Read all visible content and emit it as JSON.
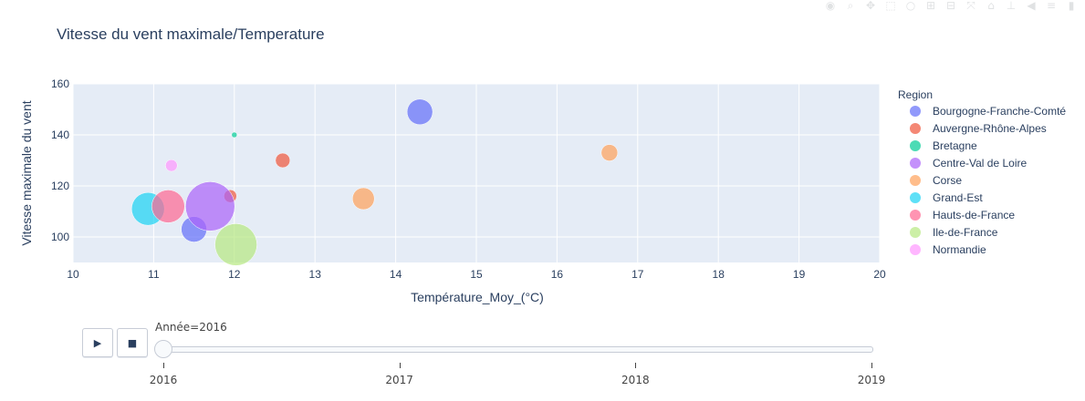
{
  "chart_data": {
    "type": "scatter",
    "title": "Vitesse du vent maximale/Temperature",
    "xlabel": "Température_Moy_(°C)",
    "ylabel": "Vitesse maximale du vent",
    "xlim": [
      10,
      20
    ],
    "ylim": [
      90,
      160
    ],
    "xticks": [
      10,
      11,
      12,
      13,
      14,
      15,
      16,
      17,
      18,
      19,
      20
    ],
    "yticks": [
      100,
      120,
      140,
      160
    ],
    "grid": true,
    "legend_title": "Region",
    "legend_position": "right",
    "series": [
      {
        "name": "Bourgogne-Franche-Comté",
        "color": "#636efa",
        "points": [
          {
            "x": 14.3,
            "y": 149,
            "size": 28
          },
          {
            "x": 11.5,
            "y": 103,
            "size": 28
          }
        ]
      },
      {
        "name": "Auvergne-Rhône-Alpes",
        "color": "#ef553b",
        "points": [
          {
            "x": 12.6,
            "y": 130,
            "size": 16
          },
          {
            "x": 11.95,
            "y": 116,
            "size": 14
          }
        ]
      },
      {
        "name": "Bretagne",
        "color": "#00cc96",
        "points": [
          {
            "x": 12.0,
            "y": 140,
            "size": 6
          }
        ]
      },
      {
        "name": "Centre-Val de Loire",
        "color": "#ab63fa",
        "points": [
          {
            "x": 11.7,
            "y": 112,
            "size": 54
          }
        ]
      },
      {
        "name": "Corse",
        "color": "#ffa15a",
        "points": [
          {
            "x": 16.65,
            "y": 133,
            "size": 18
          },
          {
            "x": 13.6,
            "y": 115,
            "size": 24
          }
        ]
      },
      {
        "name": "Grand-Est",
        "color": "#19d3f3",
        "points": [
          {
            "x": 10.93,
            "y": 111,
            "size": 36
          }
        ]
      },
      {
        "name": "Hauts-de-France",
        "color": "#ff6692",
        "points": [
          {
            "x": 11.18,
            "y": 112,
            "size": 36
          }
        ]
      },
      {
        "name": "Ile-de-France",
        "color": "#b6e880",
        "points": [
          {
            "x": 12.02,
            "y": 97,
            "size": 46
          }
        ]
      },
      {
        "name": "Normandie",
        "color": "#ff97ff",
        "points": [
          {
            "x": 11.22,
            "y": 128,
            "size": 13
          }
        ]
      }
    ]
  },
  "slider": {
    "current_label": "Année=2016",
    "steps": [
      "2016",
      "2017",
      "2018",
      "2019"
    ],
    "current_value_fraction": 0
  },
  "player": {
    "play_icon": "▶",
    "stop_icon": "■"
  },
  "modebar": [
    "camera-icon",
    "zoom-icon",
    "pan-icon",
    "box-select-icon",
    "lasso-icon",
    "zoom-in-icon",
    "zoom-out-icon",
    "autoscale-icon",
    "reset-icon",
    "spike-icon",
    "hover-closest-icon",
    "hover-compare-icon",
    "plotly-logo-icon"
  ]
}
